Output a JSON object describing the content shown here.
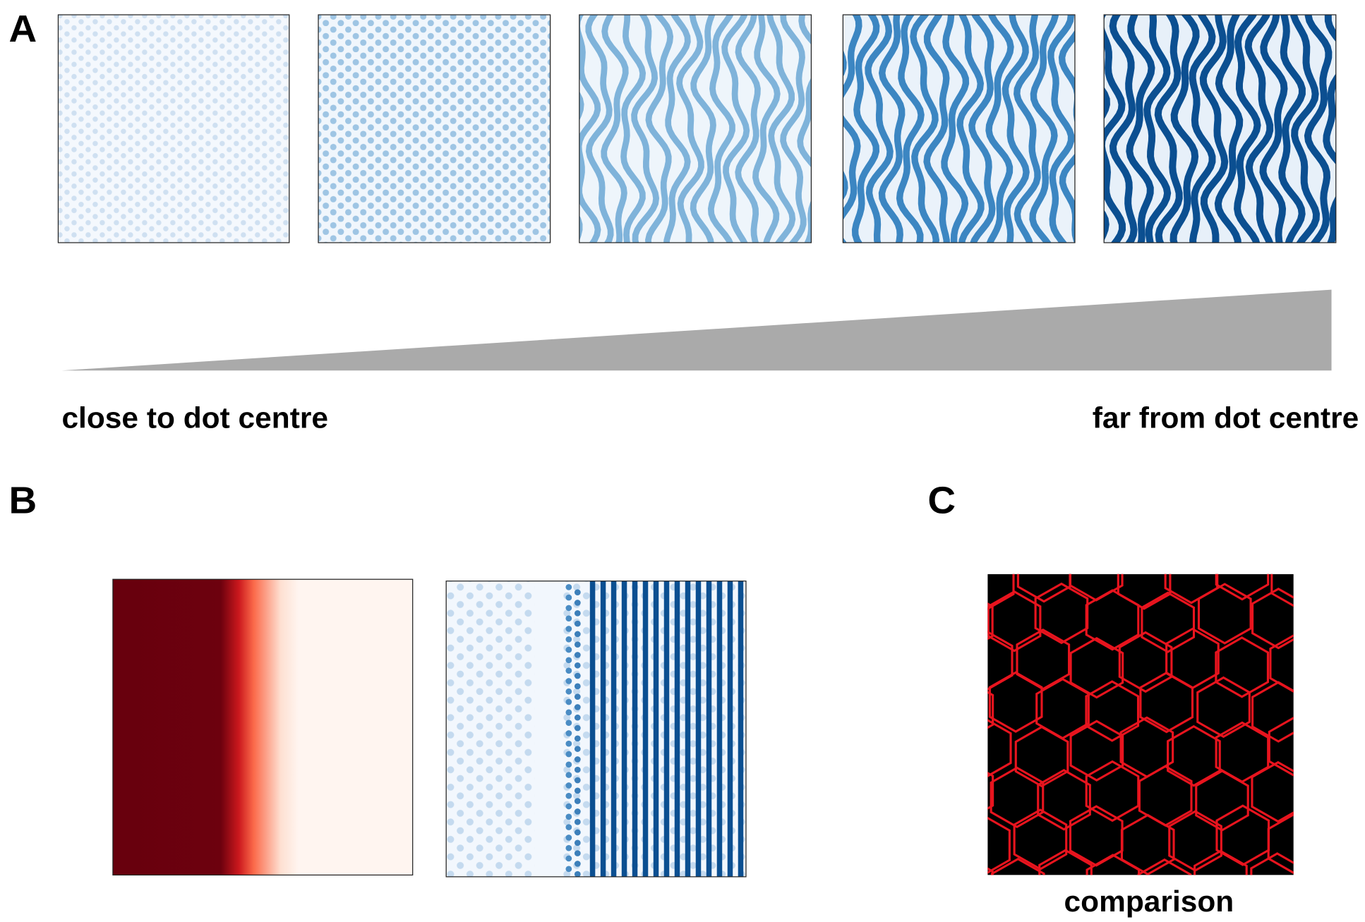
{
  "panels": {
    "A": {
      "label": "A",
      "left_caption": "close to dot centre",
      "right_caption": "far from dot centre"
    },
    "B": {
      "label": "B"
    },
    "C": {
      "label": "C",
      "caption": "comparison"
    }
  }
}
